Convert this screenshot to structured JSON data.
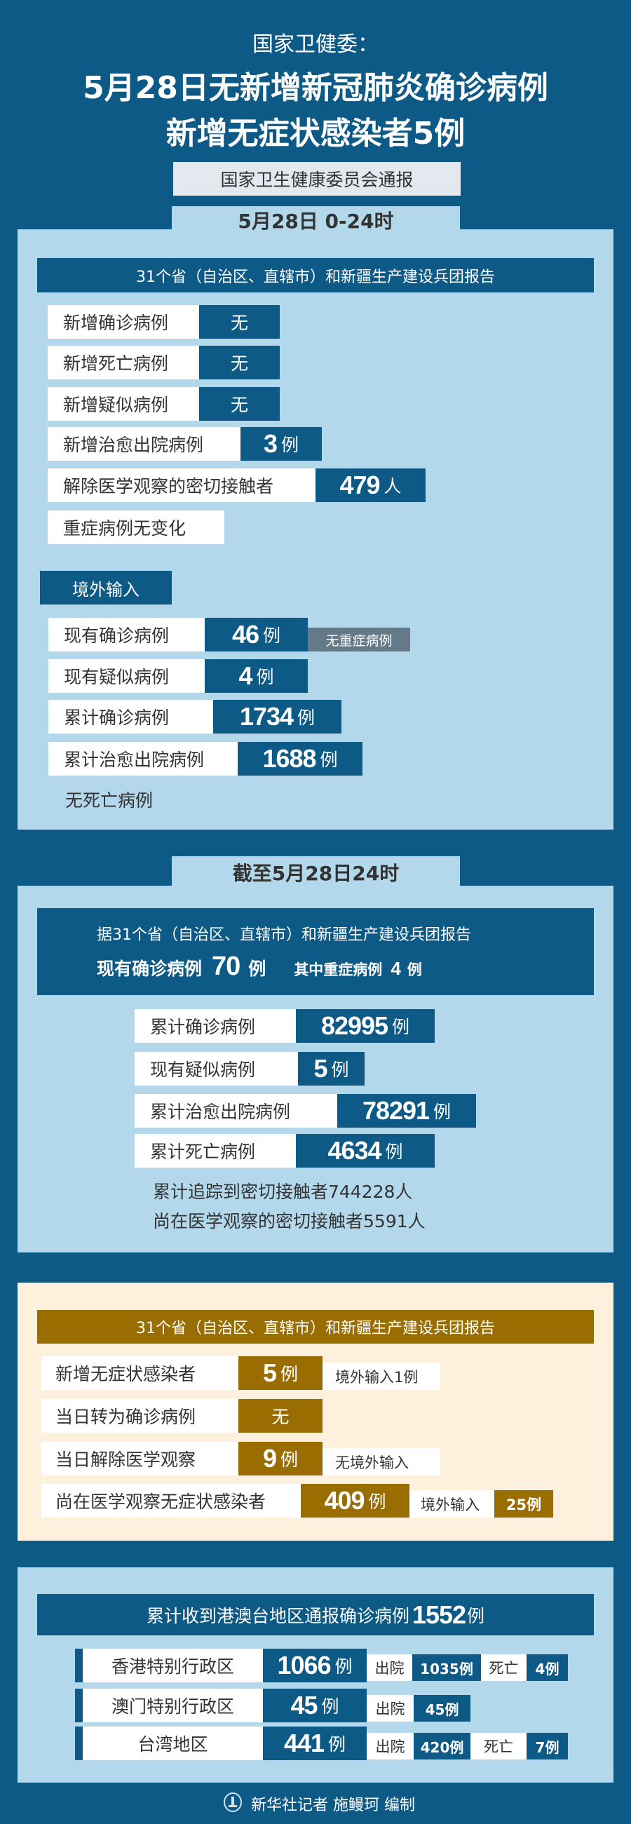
{
  "header": {
    "source": "国家卫健委：",
    "title_line1": "5月28日无新增新冠肺炎确诊病例",
    "title_line2": "新增无症状感染者5例",
    "notice": "国家卫生健康委员会通报"
  },
  "daily": {
    "tab": "5月28日 0-24时",
    "report_header": "31个省（自治区、直辖市）和新疆生产建设兵团报告",
    "rows": [
      {
        "label": "新增确诊病例",
        "value": "无"
      },
      {
        "label": "新增死亡病例",
        "value": "无"
      },
      {
        "label": "新增疑似病例",
        "value": "无"
      },
      {
        "label": "新增治愈出院病例",
        "value": "3",
        "unit": "例"
      },
      {
        "label": "解除医学观察的密切接触者",
        "value": "479",
        "unit": "人"
      }
    ],
    "severe_note": "重症病例无变化",
    "imported": {
      "title": "境外输入",
      "rows": [
        {
          "label": "现有确诊病例",
          "value": "46",
          "unit": "例",
          "tag": "无重症病例"
        },
        {
          "label": "现有疑似病例",
          "value": "4",
          "unit": "例"
        },
        {
          "label": "累计确诊病例",
          "value": "1734",
          "unit": "例"
        },
        {
          "label": "累计治愈出院病例",
          "value": "1688",
          "unit": "例"
        }
      ],
      "death_note": "无死亡病例"
    }
  },
  "cumulative": {
    "tab": "截至5月28日24时",
    "report_header": "据31个省（自治区、直辖市）和新疆生产建设兵团报告",
    "current_label": "现有确诊病例",
    "current_value": "70",
    "current_unit": "例",
    "severe_label": "其中重症病例",
    "severe_value": "4",
    "severe_unit": "例",
    "rows": [
      {
        "label": "累计确诊病例",
        "value": "82995",
        "unit": "例"
      },
      {
        "label": "现有疑似病例",
        "value": "5",
        "unit": "例"
      },
      {
        "label": "累计治愈出院病例",
        "value": "78291",
        "unit": "例"
      },
      {
        "label": "累计死亡病例",
        "value": "4634",
        "unit": "例"
      }
    ],
    "contacts_traced": "累计追踪到密切接触者744228人",
    "contacts_observed": "尚在医学观察的密切接触者5591人"
  },
  "asymptomatic": {
    "report_header": "31个省（自治区、直辖市）和新疆生产建设兵团报告",
    "rows": [
      {
        "label": "新增无症状感染者",
        "value": "5",
        "unit": "例",
        "note": "境外输入1例"
      },
      {
        "label": "当日转为确诊病例",
        "value": "无"
      },
      {
        "label": "当日解除医学观察",
        "value": "9",
        "unit": "例",
        "note": "无境外输入"
      },
      {
        "label": "尚在医学观察无症状感染者",
        "value": "409",
        "unit": "例",
        "note": "境外输入",
        "note_value": "25例"
      }
    ]
  },
  "hmt": {
    "header": "累计收到港澳台地区通报确诊病例",
    "header_value": "1552",
    "header_unit": "例",
    "discharged_label": "出院",
    "death_label": "死亡",
    "rows": [
      {
        "region": "香港特别行政区",
        "value": "1066",
        "unit": "例",
        "discharged": "1035例",
        "deaths": "4例"
      },
      {
        "region": "澳门特别行政区",
        "value": "45",
        "unit": "例",
        "discharged": "45例"
      },
      {
        "region": "台湾地区",
        "value": "441",
        "unit": "例",
        "discharged": "420例",
        "deaths": "7例"
      }
    ]
  },
  "footer": {
    "credit": "新华社记者 施鳗珂 编制",
    "logo_icon": "xinhua-logo-icon"
  },
  "colors": {
    "background": "#0d5a87",
    "panel": "#b3d8ec",
    "cream": "#fdf0dc",
    "gold": "#9a6d00",
    "tag": "#647a89"
  }
}
